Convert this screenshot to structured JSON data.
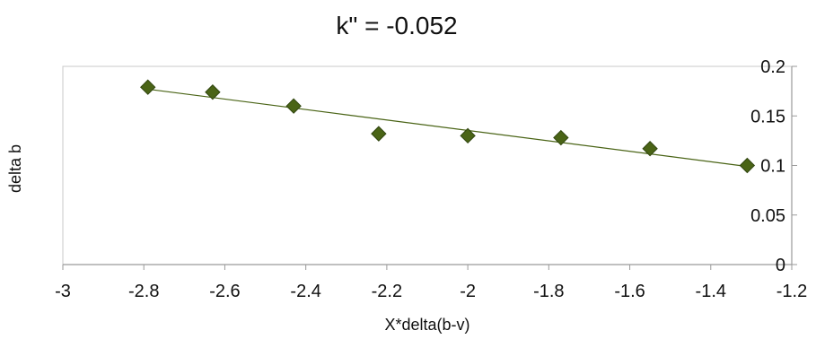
{
  "chart_data": {
    "type": "scatter",
    "title": "k\" = -0.052",
    "xlabel": "X*delta(b-v)",
    "ylabel": "delta b",
    "xlim": [
      -3,
      -1.2
    ],
    "ylim": [
      0,
      0.2
    ],
    "x_ticks": [
      -3,
      -2.8,
      -2.6,
      -2.4,
      -2.2,
      -2,
      -1.8,
      -1.6,
      -1.4,
      -1.2
    ],
    "x_tick_labels": [
      "-3",
      "-2.8",
      "-2.6",
      "-2.4",
      "-2.2",
      "-2",
      "-1.8",
      "-1.6",
      "-1.4",
      "-1.2"
    ],
    "y_ticks": [
      0,
      0.05,
      0.1,
      0.15,
      0.2
    ],
    "y_tick_labels": [
      "0",
      "0.05",
      "0.1",
      "0.15",
      "0.2"
    ],
    "y_axis_position": "right",
    "grid": false,
    "legend": "none",
    "marker": "diamond",
    "marker_color": "#4a6416",
    "line_color": "#4a6416",
    "points": [
      {
        "x": -2.79,
        "y": 0.179
      },
      {
        "x": -2.63,
        "y": 0.174
      },
      {
        "x": -2.43,
        "y": 0.16
      },
      {
        "x": -2.22,
        "y": 0.132
      },
      {
        "x": -2.0,
        "y": 0.13
      },
      {
        "x": -1.77,
        "y": 0.128
      },
      {
        "x": -1.55,
        "y": 0.117
      },
      {
        "x": -1.31,
        "y": 0.1
      }
    ],
    "trendline": {
      "x": [
        -2.79,
        -1.31
      ],
      "y": [
        0.177,
        0.099
      ]
    }
  }
}
